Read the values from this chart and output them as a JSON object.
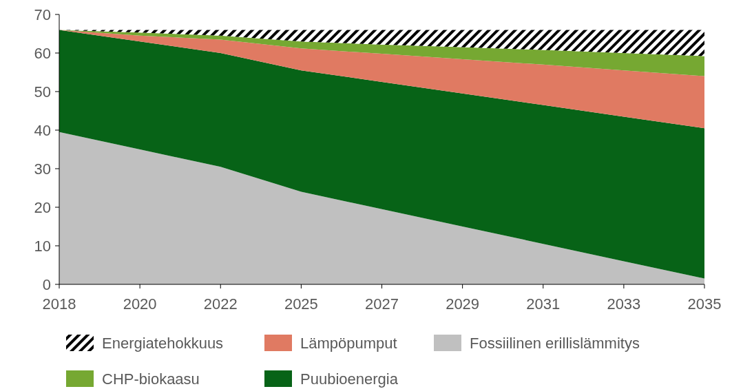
{
  "chart_data": {
    "type": "area",
    "stacked": true,
    "categories": [
      "2018",
      "2020",
      "2022",
      "2025",
      "2027",
      "2029",
      "2031",
      "2033",
      "2035"
    ],
    "ylim": [
      0,
      70
    ],
    "yticks": [
      0,
      10,
      20,
      30,
      40,
      50,
      60,
      70
    ],
    "grid": false,
    "legend": "bottom",
    "series": [
      {
        "name": "Fossiilinen  erillislämmitys",
        "color": "#c0c0c0",
        "values": [
          39.5,
          35,
          30.5,
          24,
          19.5,
          15,
          10.5,
          6,
          1.5
        ]
      },
      {
        "name": "Puubioenergia",
        "color": "#076317",
        "values": [
          26.5,
          28,
          29.5,
          31.5,
          33,
          34.5,
          36,
          37.5,
          39
        ]
      },
      {
        "name": "Lämpöpumput",
        "color": "#e07a62",
        "values": [
          0,
          1.5,
          3.5,
          5.7,
          7.3,
          8.9,
          10.5,
          12,
          13.5
        ]
      },
      {
        "name": "CHP-biokaasu",
        "color": "#76a832",
        "values": [
          0,
          0.8,
          1,
          1.8,
          2.4,
          3.1,
          3.8,
          4.5,
          5.2
        ]
      },
      {
        "name": "Energiatehokkuus",
        "color": "#000000",
        "values": [
          0,
          0.7,
          1.5,
          3,
          3.8,
          4.5,
          5.2,
          6,
          6.8
        ]
      }
    ]
  }
}
